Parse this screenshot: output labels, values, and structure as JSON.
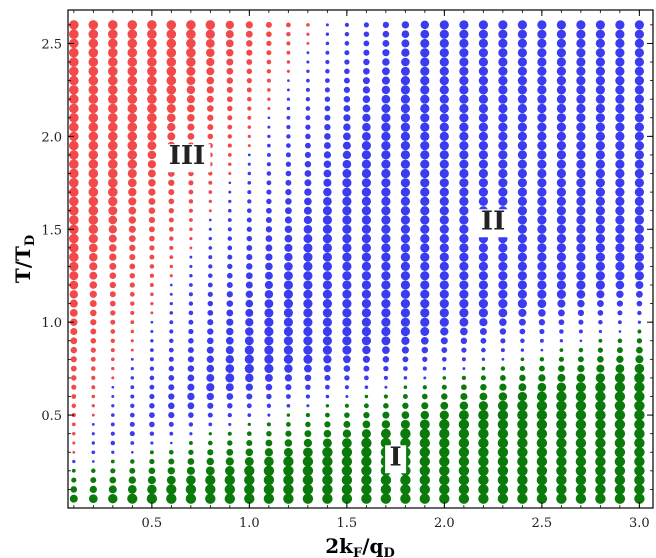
{
  "chart_data": {
    "type": "scatter",
    "title": "",
    "xlabel": {
      "main": "2k",
      "sub1": "F",
      "mid": "/q",
      "sub2": "D"
    },
    "ylabel": {
      "main": "T/T",
      "sub": "D"
    },
    "xlim": [
      0.07,
      3.07
    ],
    "ylim": [
      0.0,
      2.68
    ],
    "x_ticks": [
      0.5,
      1.0,
      1.5,
      2.0,
      2.5,
      3.0
    ],
    "x_tick_labels": [
      "0.5",
      "1.0",
      "1.5",
      "2.0",
      "2.5",
      "3.0"
    ],
    "y_ticks": [
      0.5,
      1.0,
      1.5,
      2.0,
      2.5
    ],
    "y_tick_labels": [
      "0.5",
      "1.0",
      "1.5",
      "2.0",
      "2.5"
    ],
    "grid": false,
    "legend": "none",
    "marker_grid": {
      "x_start": 0.1,
      "x_step": 0.1,
      "x_count": 30,
      "y_start": 0.05,
      "y_step": 0.05,
      "y_count": 52
    },
    "phases": [
      {
        "id": "I",
        "color": "#0a7a0a",
        "region": "low temperature, below boundary from T≈0.22 at 2k_F/q_D≈0.1 to T≈1.0 at 2k_F/q_D≈3.0"
      },
      {
        "id": "II",
        "color": "#3b3bef",
        "region": "above phase I, right of boundary from 2k_F/q_D≈0.1 (T≈0.3) to 2k_F/q_D≈1.6 (T≈2.65)"
      },
      {
        "id": "III",
        "color": "#f24a4a",
        "region": "upper left, left of phase II boundary"
      }
    ],
    "annotations": [
      {
        "text": "III",
        "x": 0.68,
        "y": 1.85
      },
      {
        "text": "II",
        "x": 2.25,
        "y": 1.5
      },
      {
        "text": "I",
        "x": 1.75,
        "y": 0.23
      }
    ]
  }
}
